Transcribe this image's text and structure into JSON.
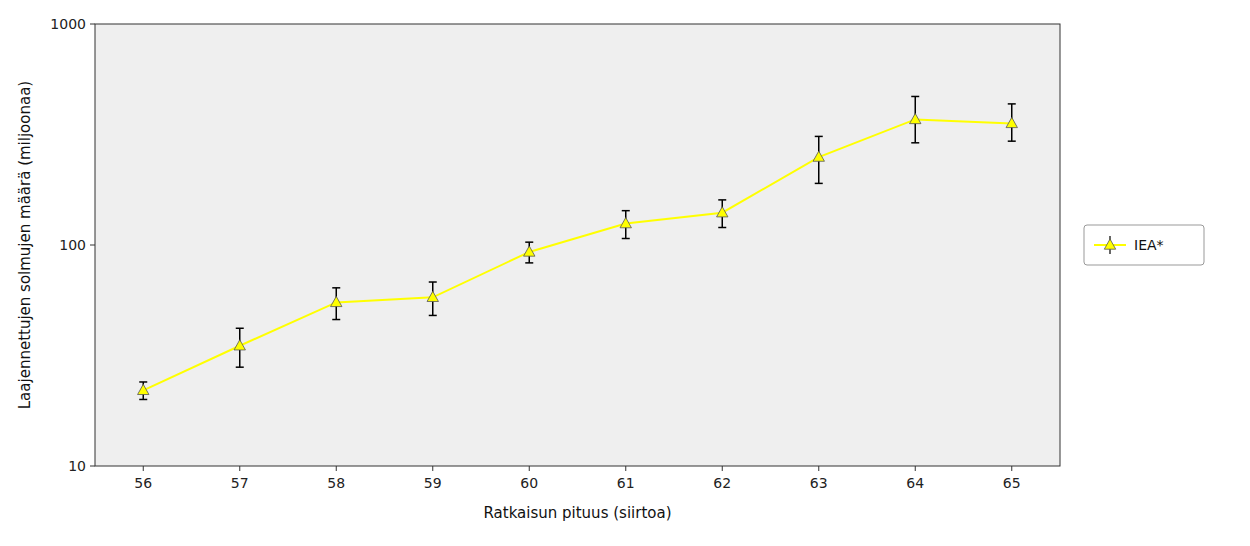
{
  "chart_data": {
    "type": "line",
    "xlabel": "Ratkaisun pituus (siirtoa)",
    "ylabel": "Laajennettujen solmujen määrä (miljoonaa)",
    "x": [
      56,
      57,
      58,
      59,
      60,
      61,
      62,
      63,
      64,
      65
    ],
    "series": [
      {
        "name": "IEA*",
        "color": "#ffff00",
        "marker": "triangle",
        "line_style": "solid",
        "values": [
          22,
          35,
          55,
          58,
          93,
          125,
          140,
          250,
          370,
          355
        ],
        "error_low": [
          2,
          7,
          9,
          10,
          10,
          18,
          20,
          60,
          80,
          60
        ],
        "error_high": [
          2,
          7,
          9,
          10,
          10,
          18,
          20,
          60,
          100,
          80
        ]
      }
    ],
    "xlim": [
      55.5,
      65.5
    ],
    "xticks": [
      56,
      57,
      58,
      59,
      60,
      61,
      62,
      63,
      64,
      65
    ],
    "ylim": [
      10,
      1000
    ],
    "yticks": [
      10,
      100,
      1000
    ],
    "log": "y",
    "grid": false,
    "legend": "right"
  }
}
